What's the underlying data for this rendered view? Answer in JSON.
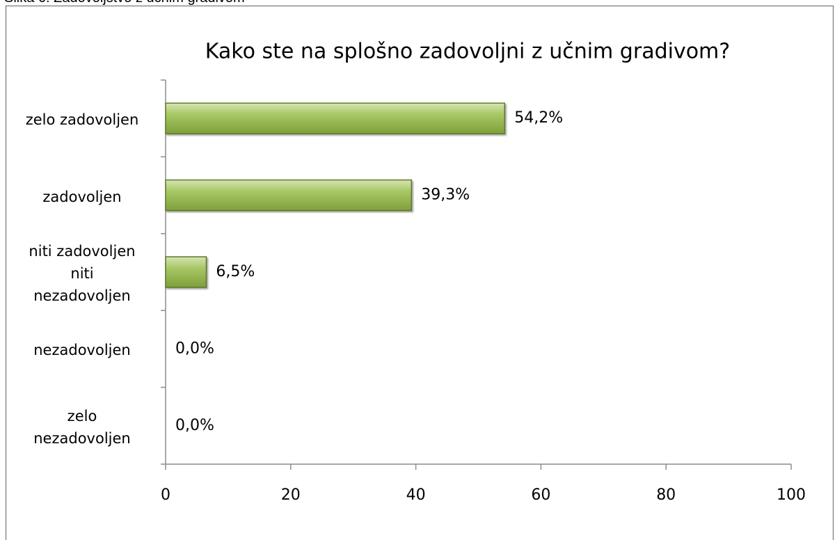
{
  "caption": "Slika 6: Zadovoljstvo z učnim gradivom",
  "chart_data": {
    "type": "bar",
    "orientation": "horizontal",
    "title": "Kako ste na splošno zadovoljni z učnim gradivom?",
    "categories": [
      "zelo zadovoljen",
      "zadovoljen",
      "niti zadovoljen\nniti\nnezadovoljen",
      "nezadovoljen",
      "zelo\nnezadovoljen"
    ],
    "values": [
      54.2,
      39.3,
      6.5,
      0,
      0
    ],
    "value_labels": [
      "54,2%",
      "39,3%",
      "6,5%",
      "0,0%",
      "0,0%"
    ],
    "color": "#9bbb59",
    "xlim": [
      0,
      100
    ],
    "xticks": [
      0,
      20,
      40,
      60,
      80,
      100
    ],
    "grid": true
  }
}
